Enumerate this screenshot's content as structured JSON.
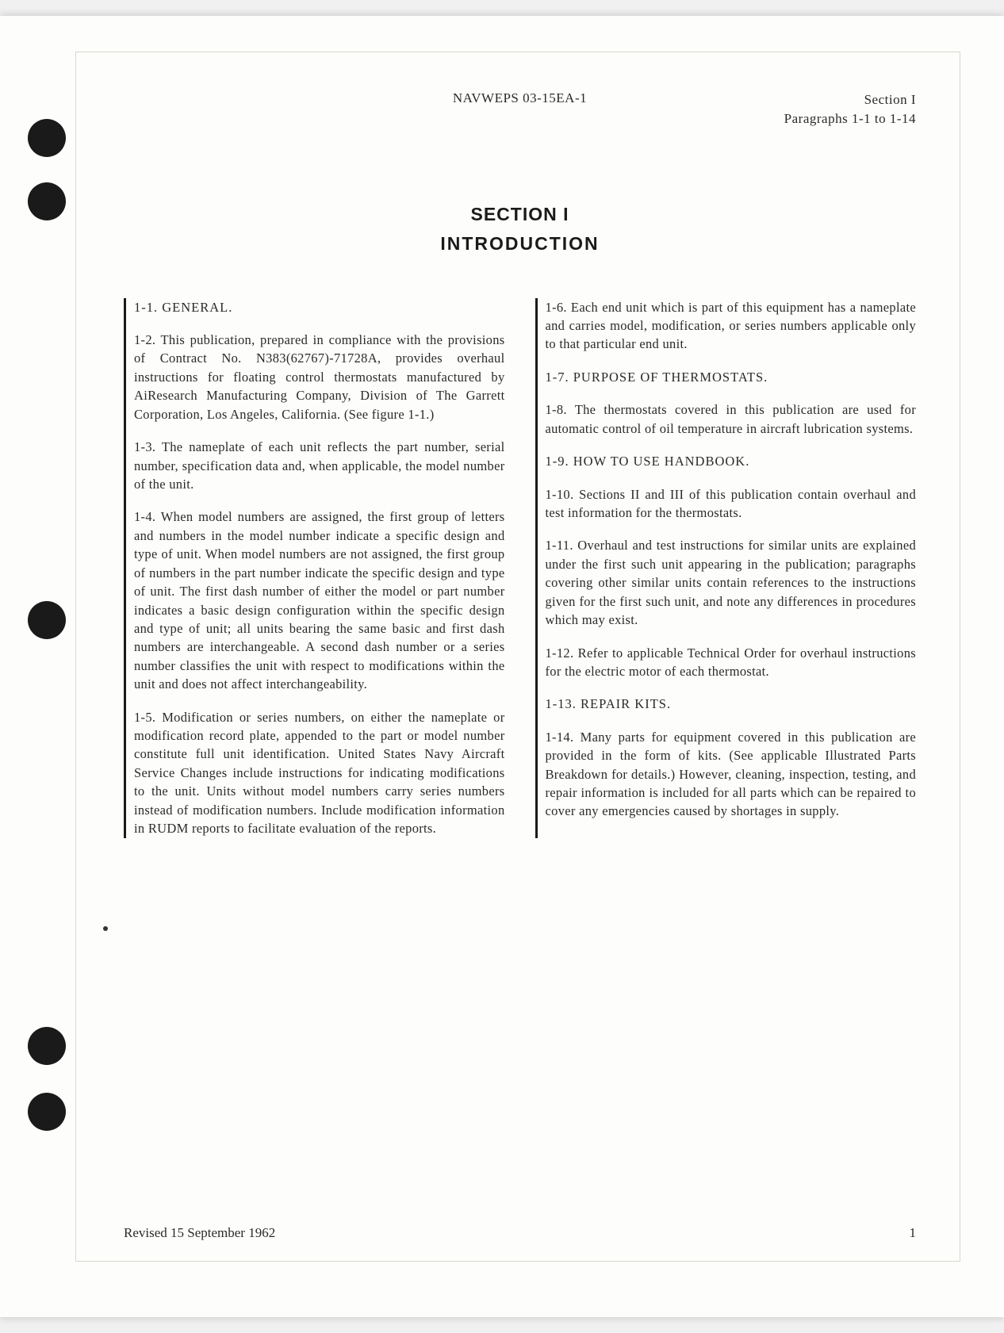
{
  "header": {
    "center": "NAVWEPS 03-15EA-1",
    "right_line1": "Section I",
    "right_line2": "Paragraphs 1-1 to 1-14"
  },
  "title": {
    "section": "SECTION I",
    "name": "INTRODUCTION"
  },
  "left_column": {
    "p1": "1-1.  GENERAL.",
    "p2": "1-2.  This publication, prepared in compliance with the provisions of Contract No. N383(62767)-71728A, provides overhaul instructions for floating control thermostats manufactured by AiResearch Manufacturing Company, Division of The Garrett Corporation, Los Angeles, California. (See figure 1-1.)",
    "p3": "1-3.  The nameplate of each unit reflects the part number, serial number, specification data and, when applicable, the model number of the unit.",
    "p4": "1-4.  When model numbers are assigned, the first group of letters and numbers in the model number indicate a specific design and type of unit. When model numbers are not assigned, the first group of numbers in the part number indicate the specific design and type of unit. The first dash number of either the model or part number indicates a basic design configuration within the specific design and type of unit; all units bearing the same basic and first dash numbers are interchangeable. A second dash number or a series number classifies the unit with respect to modifications within the unit and does not affect interchangeability.",
    "p5": "1-5.  Modification or series numbers, on either the nameplate or modification record plate, appended to the part or model number constitute full unit identification. United States Navy Aircraft Service Changes include instructions for indicating modifications to the unit. Units without model numbers carry series numbers instead of modification numbers. Include modification information in RUDM reports to facilitate evaluation of the reports."
  },
  "right_column": {
    "p1": "1-6.  Each end unit which is part of this equipment has a nameplate and carries model, modification, or series numbers applicable only to that particular end unit.",
    "p2": "1-7.  PURPOSE OF THERMOSTATS.",
    "p3": "1-8.  The thermostats covered in this publication are used for automatic control of oil temperature in aircraft lubrication systems.",
    "p4": "1-9.  HOW TO USE HANDBOOK.",
    "p5": "1-10.  Sections II and III of this publication contain overhaul and test information for the thermostats.",
    "p6": "1-11.  Overhaul and test instructions for similar units are explained under the first such unit appearing in the publication; paragraphs covering other similar units contain references to the instructions given for the first such unit, and note any differences in procedures which may exist.",
    "p7": "1-12.  Refer to applicable Technical Order for overhaul instructions for the electric motor of each thermostat.",
    "p8": "1-13.  REPAIR KITS.",
    "p9": "1-14.  Many parts for equipment covered in this publication are provided in the form of kits. (See applicable Illustrated Parts Breakdown for details.) However, cleaning, inspection, testing, and repair information is included for all parts which can be repaired to cover any emergencies caused by shortages in supply."
  },
  "footer": {
    "revised": "Revised 15 September 1962",
    "page": "1"
  }
}
